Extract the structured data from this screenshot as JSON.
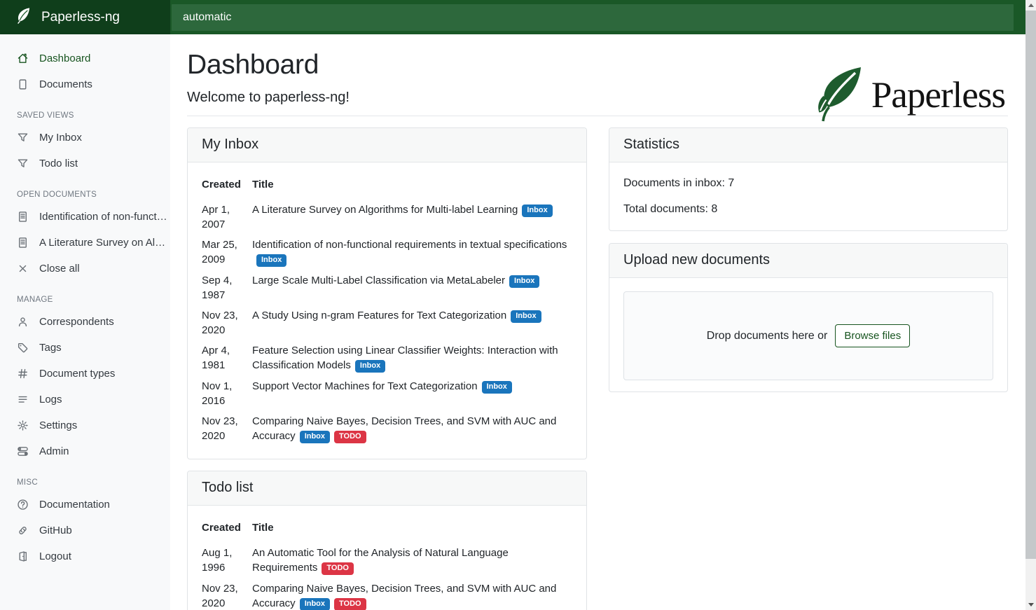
{
  "navbar": {
    "brand": "Paperless-ng",
    "search_value": "automatic"
  },
  "sidebar": {
    "sections": [
      {
        "header": "",
        "items": [
          {
            "icon": "house",
            "label": "Dashboard",
            "active": true
          },
          {
            "icon": "file",
            "label": "Documents"
          }
        ]
      },
      {
        "header": "SAVED VIEWS",
        "items": [
          {
            "icon": "funnel",
            "label": "My Inbox"
          },
          {
            "icon": "funnel",
            "label": "Todo list"
          }
        ]
      },
      {
        "header": "OPEN DOCUMENTS",
        "items": [
          {
            "icon": "file-text",
            "label": "Identification of non-functio…"
          },
          {
            "icon": "file-text",
            "label": "A Literature Survey on Algori…"
          },
          {
            "icon": "close",
            "label": "Close all"
          }
        ]
      },
      {
        "header": "MANAGE",
        "items": [
          {
            "icon": "person",
            "label": "Correspondents"
          },
          {
            "icon": "tag",
            "label": "Tags"
          },
          {
            "icon": "hash",
            "label": "Document types"
          },
          {
            "icon": "list",
            "label": "Logs"
          },
          {
            "icon": "gear",
            "label": "Settings"
          },
          {
            "icon": "toggles",
            "label": "Admin"
          }
        ]
      },
      {
        "header": "MISC",
        "items": [
          {
            "icon": "question-circle",
            "label": "Documentation"
          },
          {
            "icon": "link",
            "label": "GitHub"
          },
          {
            "icon": "door",
            "label": "Logout"
          }
        ]
      }
    ]
  },
  "page": {
    "title": "Dashboard",
    "welcome": "Welcome to paperless-ng!",
    "logo_text": "Paperless"
  },
  "my_inbox": {
    "title": "My Inbox",
    "columns": [
      "Created",
      "Title"
    ],
    "rows": [
      {
        "created": "Apr 1, 2007",
        "title": "A Literature Survey on Algorithms for Multi-label Learning",
        "tags": [
          "Inbox"
        ]
      },
      {
        "created": "Mar 25, 2009",
        "title": "Identification of non-functional requirements in textual specifications",
        "tags": [
          "Inbox"
        ]
      },
      {
        "created": "Sep 4, 1987",
        "title": "Large Scale Multi-Label Classification via MetaLabeler",
        "tags": [
          "Inbox"
        ]
      },
      {
        "created": "Nov 23, 2020",
        "title": "A Study Using n-gram Features for Text Categorization",
        "tags": [
          "Inbox"
        ]
      },
      {
        "created": "Apr 4, 1981",
        "title": "Feature Selection using Linear Classifier Weights: Interaction with Classification Models",
        "tags": [
          "Inbox"
        ]
      },
      {
        "created": "Nov 1, 2016",
        "title": "Support Vector Machines for Text Categorization",
        "tags": [
          "Inbox"
        ]
      },
      {
        "created": "Nov 23, 2020",
        "title": "Comparing Naive Bayes, Decision Trees, and SVM with AUC and Accuracy",
        "tags": [
          "Inbox",
          "TODO"
        ]
      }
    ]
  },
  "todo_list": {
    "title": "Todo list",
    "columns": [
      "Created",
      "Title"
    ],
    "rows": [
      {
        "created": "Aug 1, 1996",
        "title": "An Automatic Tool for the Analysis of Natural Language Requirements",
        "tags": [
          "TODO"
        ]
      },
      {
        "created": "Nov 23, 2020",
        "title": "Comparing Naive Bayes, Decision Trees, and SVM with AUC and Accuracy",
        "tags": [
          "Inbox",
          "TODO"
        ]
      }
    ]
  },
  "statistics": {
    "title": "Statistics",
    "lines": [
      "Documents in inbox: 7",
      "Total documents: 8"
    ]
  },
  "upload": {
    "title": "Upload new documents",
    "drop_text": "Drop documents here or",
    "browse_label": "Browse files"
  },
  "tag_colors": {
    "Inbox": "#1a75bc",
    "TODO": "#dc3545"
  },
  "theme": {
    "navbar": "#1a5827",
    "brand_bg": "#0f3e1b",
    "search_bg": "#2d683c",
    "accent": "#17541f"
  }
}
